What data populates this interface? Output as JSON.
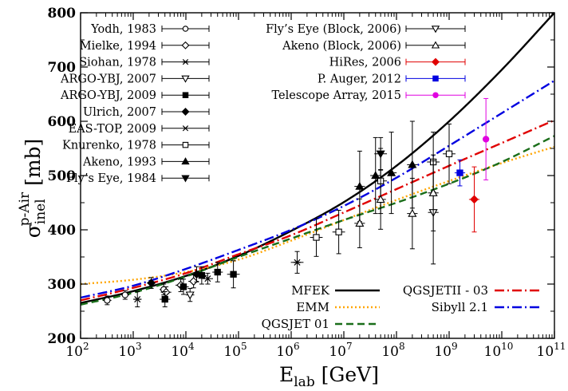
{
  "chart_data": {
    "type": "scatter",
    "xlabel_main": "E",
    "xlabel_sub": "lab",
    "xlabel_unit": " [GeV]",
    "ylabel_main": "σ",
    "ylabel_sub": "inel",
    "ylabel_sup": "p-Air",
    "ylabel_unit": " [mb]",
    "x_scale": "log",
    "xlim": [
      100,
      100000000000
    ],
    "ylim": [
      200,
      800
    ],
    "x_ticks": [
      {
        "base": "10",
        "exp": "2",
        "value": 100
      },
      {
        "base": "10",
        "exp": "3",
        "value": 1000
      },
      {
        "base": "10",
        "exp": "4",
        "value": 10000
      },
      {
        "base": "10",
        "exp": "5",
        "value": 100000
      },
      {
        "base": "10",
        "exp": "6",
        "value": 1000000
      },
      {
        "base": "10",
        "exp": "7",
        "value": 10000000
      },
      {
        "base": "10",
        "exp": "8",
        "value": 100000000
      },
      {
        "base": "10",
        "exp": "9",
        "value": 1000000000
      },
      {
        "base": "10",
        "exp": "10",
        "value": 10000000000
      },
      {
        "base": "10",
        "exp": "11",
        "value": 100000000000
      }
    ],
    "y_ticks": [
      "200",
      "300",
      "400",
      "500",
      "600",
      "700",
      "800"
    ],
    "y_tick_values": [
      200,
      300,
      400,
      500,
      600,
      700,
      800
    ],
    "grid": false,
    "legend_placement": "top-left",
    "curves_legend_placement": "bottom-right",
    "models": [
      {
        "name": "MFEK",
        "color": "#000000",
        "dash": "solid",
        "x": [
          100,
          1000,
          10000,
          100000,
          1000000,
          10000000,
          100000000,
          1000000000,
          10000000000,
          100000000000
        ],
        "y": [
          265,
          287,
          315,
          352,
          398,
          451,
          518,
          600,
          695,
          800
        ]
      },
      {
        "name": "EMM",
        "color": "#ffa500",
        "dash": "dot",
        "x": [
          100,
          1000,
          10000,
          100000,
          1000000,
          10000000,
          100000000,
          1000000000,
          10000000000,
          100000000000
        ],
        "y": [
          300,
          308,
          322,
          345,
          380,
          418,
          455,
          490,
          523,
          553
        ]
      },
      {
        "name": "QGSJET 01",
        "color": "#1a6e1a",
        "dash": "dash",
        "x": [
          100,
          1000,
          10000,
          100000,
          1000000,
          10000000,
          100000000,
          1000000000,
          10000000000,
          100000000000
        ],
        "y": [
          262,
          284,
          314,
          350,
          384,
          418,
          450,
          485,
          525,
          573
        ]
      },
      {
        "name": "QGSJETII - 03",
        "color": "#e00000",
        "dash": "dashdot",
        "x": [
          100,
          1000,
          10000,
          100000,
          1000000,
          10000000,
          100000000,
          1000000000,
          10000000000,
          100000000000
        ],
        "y": [
          270,
          293,
          320,
          355,
          390,
          432,
          475,
          518,
          560,
          602
        ]
      },
      {
        "name": "Sibyll 2.1",
        "color": "#0000e0",
        "dash": "dashdot",
        "x": [
          100,
          1000,
          10000,
          100000,
          1000000,
          10000000,
          100000000,
          1000000000,
          10000000000,
          100000000000
        ],
        "y": [
          275,
          297,
          328,
          363,
          400,
          444,
          496,
          555,
          615,
          675
        ]
      }
    ],
    "experiments": [
      {
        "name": "Yodh, 1983",
        "marker": "circle-open",
        "color": "#000000",
        "points": [
          {
            "x": 320,
            "y": 270,
            "yerr": 8,
            "xerr": 0.08
          },
          {
            "x": 700,
            "y": 280,
            "yerr": 8,
            "xerr": 0.08
          },
          {
            "x": 3800,
            "y": 290,
            "yerr": 10,
            "xerr": 0.08
          }
        ]
      },
      {
        "name": "Mielke, 1994",
        "marker": "diamond-open",
        "color": "#000000",
        "points": [
          {
            "x": 4200,
            "y": 285,
            "yerr": 10,
            "xerr": 0.1
          },
          {
            "x": 8000,
            "y": 298,
            "yerr": 12,
            "xerr": 0.1
          },
          {
            "x": 14000,
            "y": 305,
            "yerr": 12,
            "xerr": 0.1
          }
        ]
      },
      {
        "name": "Siohan, 1978",
        "marker": "star",
        "color": "#000000",
        "points": [
          {
            "x": 1200,
            "y": 272,
            "yerr": 14,
            "xerr": 0.08
          },
          {
            "x": 1300000,
            "y": 340,
            "yerr": 20,
            "xerr": 0.12
          }
        ]
      },
      {
        "name": "ARGO-YBJ, 2007",
        "marker": "triangle-down-open",
        "color": "#000000",
        "points": [
          {
            "x": 12000,
            "y": 280,
            "yerr": 12,
            "xerr": 0.08
          }
        ]
      },
      {
        "name": "ARGO-YBJ, 2009",
        "marker": "square-filled",
        "color": "#000000",
        "points": [
          {
            "x": 4000,
            "y": 272,
            "yerr": 14,
            "xerr": 0.1
          },
          {
            "x": 9000,
            "y": 295,
            "yerr": 14,
            "xerr": 0.1
          },
          {
            "x": 20000,
            "y": 316,
            "yerr": 16,
            "xerr": 0.1
          },
          {
            "x": 40000,
            "y": 322,
            "yerr": 18,
            "xerr": 0.1
          },
          {
            "x": 80000,
            "y": 318,
            "yerr": 25,
            "xerr": 0.12
          }
        ]
      },
      {
        "name": "Ulrich, 2007",
        "marker": "diamond-filled",
        "color": "#000000",
        "points": [
          {
            "x": 2200,
            "y": 302,
            "yerr": 10,
            "xerr": 0.08
          },
          {
            "x": 16000,
            "y": 318,
            "yerr": 14,
            "xerr": 0.08
          }
        ]
      },
      {
        "name": "EAS-TOP, 2009",
        "marker": "cross",
        "color": "#000000",
        "points": [
          {
            "x": 26000,
            "y": 310,
            "yerr": 10,
            "xerr": 0.1
          }
        ]
      },
      {
        "name": "Knurenko, 1978",
        "marker": "square-open",
        "color": "#000000",
        "points": [
          {
            "x": 3000000,
            "y": 386,
            "yerr": 35,
            "xerr": 0.12
          },
          {
            "x": 8000000,
            "y": 396,
            "yerr": 40,
            "xerr": 0.12
          },
          {
            "x": 50000000,
            "y": 490,
            "yerr": 60,
            "xerr": 0.12
          },
          {
            "x": 500000000,
            "y": 525,
            "yerr": 55,
            "xerr": 0.12
          },
          {
            "x": 1000000000,
            "y": 540,
            "yerr": 55,
            "xerr": 0.12
          }
        ]
      },
      {
        "name": "Akeno, 1993",
        "marker": "triangle-up-filled",
        "color": "#000000",
        "points": [
          {
            "x": 20000000,
            "y": 480,
            "yerr": 65,
            "xerr": 0.1
          },
          {
            "x": 40000000,
            "y": 500,
            "yerr": 70,
            "xerr": 0.1
          },
          {
            "x": 80000000,
            "y": 505,
            "yerr": 75,
            "xerr": 0.1
          },
          {
            "x": 200000000,
            "y": 520,
            "yerr": 80,
            "xerr": 0.1
          }
        ]
      },
      {
        "name": "Fly’s Eye, 1984",
        "marker": "triangle-down-filled",
        "color": "#000000",
        "points": [
          {
            "x": 50000000,
            "y": 540,
            "yerr": 30,
            "xerr": 0.12
          }
        ]
      },
      {
        "name": "Fly’s Eye (Block, 2006)",
        "marker": "triangle-down-open",
        "color": "#000000",
        "points": [
          {
            "x": 500000000,
            "y": 432,
            "yerr": 95,
            "xerr": 0.1
          }
        ]
      },
      {
        "name": "Akeno (Block, 2006)",
        "marker": "triangle-up-open",
        "color": "#000000",
        "points": [
          {
            "x": 20000000,
            "y": 412,
            "yerr": 45,
            "xerr": 0.1
          },
          {
            "x": 50000000,
            "y": 456,
            "yerr": 55,
            "xerr": 0.1
          },
          {
            "x": 200000000,
            "y": 430,
            "yerr": 65,
            "xerr": 0.1
          },
          {
            "x": 500000000,
            "y": 468,
            "yerr": 70,
            "xerr": 0.1
          }
        ]
      },
      {
        "name": "HiRes, 2006",
        "marker": "diamond-filled",
        "color": "#e00000",
        "points": [
          {
            "x": 3000000000,
            "y": 456,
            "yerr": 60,
            "xerr": 0.1
          }
        ]
      },
      {
        "name": "P. Auger, 2012",
        "marker": "square-filled",
        "color": "#0000e0",
        "points": [
          {
            "x": 1600000000,
            "y": 505,
            "yerr": 24,
            "xerr": 0.1
          }
        ]
      },
      {
        "name": "Telescope Array, 2015",
        "marker": "circle-filled",
        "color": "#e000e0",
        "points": [
          {
            "x": 5000000000,
            "y": 567,
            "yerr": 75,
            "xerr": 0.02
          }
        ]
      }
    ]
  }
}
